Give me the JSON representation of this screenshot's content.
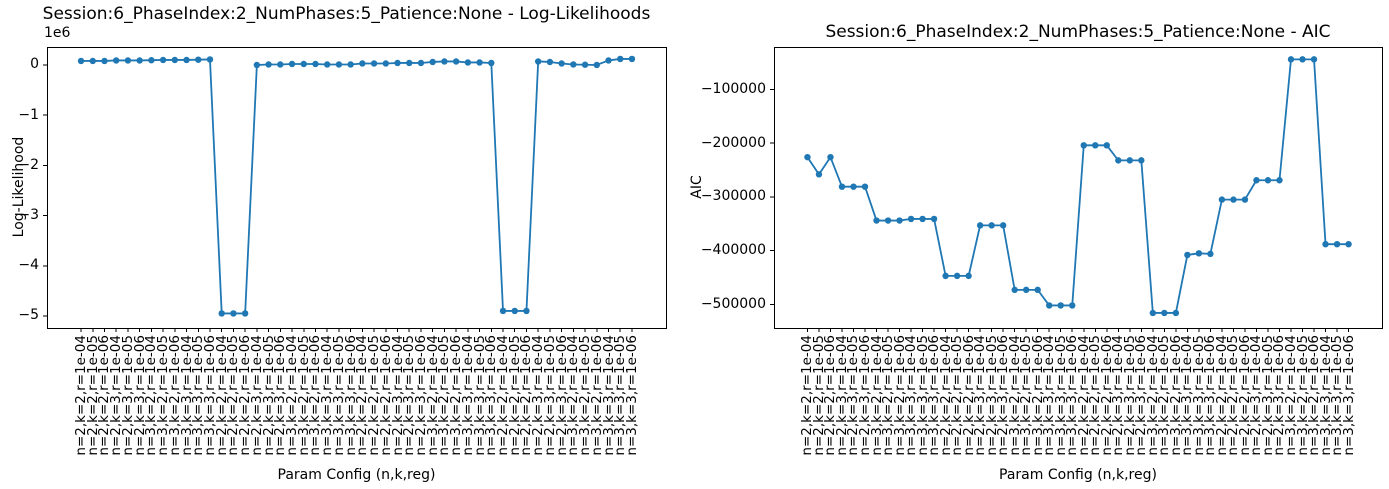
{
  "figure_title": "Session 6 Phase 2 model comparison figure",
  "accent_color": "#1f77b4",
  "chart_data": [
    {
      "type": "line",
      "title": "Session:6_PhaseIndex:2_NumPhases:5_Patience:None - Log-Likelihoods",
      "xlabel": "Param Config (n,k,reg)",
      "ylabel": "Log-Likelihood",
      "offset_text": "1e6",
      "series_color": "#1f77b4",
      "marker": "o",
      "grid": false,
      "legend": null,
      "ylim": [
        -5240000,
        358000
      ],
      "yticks": [
        {
          "value": 0,
          "label": "0"
        },
        {
          "value": -1000000,
          "label": "−1"
        },
        {
          "value": -2000000,
          "label": "−2"
        },
        {
          "value": -3000000,
          "label": "−3"
        },
        {
          "value": -4000000,
          "label": "−4"
        },
        {
          "value": -5000000,
          "label": "−5"
        }
      ],
      "x_labels": [
        "n=2,k=2,r=1e-04",
        "n=2,k=2,r=1e-05",
        "n=2,k=2,r=1e-06",
        "n=2,k=3,r=1e-04",
        "n=2,k=3,r=1e-05",
        "n=2,k=3,r=1e-06",
        "n=3,k=2,r=1e-04",
        "n=3,k=2,r=1e-05",
        "n=3,k=2,r=1e-06",
        "n=3,k=3,r=1e-04",
        "n=3,k=3,r=1e-05",
        "n=3,k=3,r=1e-06",
        "n=2,k=2,r=1e-04",
        "n=2,k=2,r=1e-05",
        "n=2,k=2,r=1e-06",
        "n=2,k=3,r=1e-04",
        "n=2,k=3,r=1e-05",
        "n=2,k=3,r=1e-06",
        "n=3,k=2,r=1e-04",
        "n=3,k=2,r=1e-05",
        "n=3,k=2,r=1e-06",
        "n=3,k=3,r=1e-04",
        "n=3,k=3,r=1e-05",
        "n=3,k=3,r=1e-06",
        "n=2,k=2,r=1e-04",
        "n=2,k=2,r=1e-05",
        "n=2,k=2,r=1e-06",
        "n=2,k=3,r=1e-04",
        "n=2,k=3,r=1e-05",
        "n=2,k=3,r=1e-06",
        "n=3,k=2,r=1e-04",
        "n=3,k=2,r=1e-05",
        "n=3,k=2,r=1e-06",
        "n=3,k=3,r=1e-04",
        "n=3,k=3,r=1e-05",
        "n=3,k=3,r=1e-06",
        "n=2,k=2,r=1e-04",
        "n=2,k=2,r=1e-05",
        "n=2,k=2,r=1e-06",
        "n=2,k=3,r=1e-04",
        "n=2,k=3,r=1e-05",
        "n=2,k=3,r=1e-06",
        "n=3,k=2,r=1e-04",
        "n=3,k=2,r=1e-05",
        "n=3,k=2,r=1e-06",
        "n=3,k=3,r=1e-04",
        "n=3,k=3,r=1e-05",
        "n=3,k=3,r=1e-06"
      ],
      "values": [
        80000,
        80000,
        80000,
        90000,
        90000,
        90000,
        95000,
        100000,
        100000,
        100000,
        105000,
        110000,
        -4950000,
        -4950000,
        -4950000,
        0,
        10000,
        10000,
        20000,
        20000,
        20000,
        10000,
        10000,
        10000,
        30000,
        30000,
        30000,
        40000,
        40000,
        40000,
        60000,
        70000,
        70000,
        50000,
        50000,
        40000,
        -4900000,
        -4900000,
        -4900000,
        70000,
        60000,
        30000,
        10000,
        5000,
        0,
        90000,
        120000,
        120000
      ]
    },
    {
      "type": "line",
      "title": "Session:6_PhaseIndex:2_NumPhases:5_Patience:None - AIC",
      "xlabel": "Param Config (n,k,reg)",
      "ylabel": "AIC",
      "offset_text": null,
      "series_color": "#1f77b4",
      "marker": "o",
      "grid": false,
      "legend": null,
      "ylim": [
        -544000,
        -21000
      ],
      "yticks": [
        {
          "value": -100000,
          "label": "−100000"
        },
        {
          "value": -200000,
          "label": "−200000"
        },
        {
          "value": -300000,
          "label": "−300000"
        },
        {
          "value": -400000,
          "label": "−400000"
        },
        {
          "value": -500000,
          "label": "−500000"
        }
      ],
      "x_labels": [
        "n=2,k=2,r=1e-04",
        "n=2,k=2,r=1e-05",
        "n=2,k=2,r=1e-06",
        "n=2,k=3,r=1e-04",
        "n=2,k=3,r=1e-05",
        "n=2,k=3,r=1e-06",
        "n=3,k=2,r=1e-04",
        "n=3,k=2,r=1e-05",
        "n=3,k=2,r=1e-06",
        "n=3,k=3,r=1e-04",
        "n=3,k=3,r=1e-05",
        "n=3,k=3,r=1e-06",
        "n=2,k=2,r=1e-04",
        "n=2,k=2,r=1e-05",
        "n=2,k=2,r=1e-06",
        "n=2,k=3,r=1e-04",
        "n=2,k=3,r=1e-05",
        "n=2,k=3,r=1e-06",
        "n=3,k=2,r=1e-04",
        "n=3,k=2,r=1e-05",
        "n=3,k=2,r=1e-06",
        "n=3,k=3,r=1e-04",
        "n=3,k=3,r=1e-05",
        "n=3,k=3,r=1e-06",
        "n=2,k=2,r=1e-04",
        "n=2,k=2,r=1e-05",
        "n=2,k=2,r=1e-06",
        "n=2,k=3,r=1e-04",
        "n=2,k=3,r=1e-05",
        "n=2,k=3,r=1e-06",
        "n=3,k=2,r=1e-04",
        "n=3,k=2,r=1e-05",
        "n=3,k=2,r=1e-06",
        "n=3,k=3,r=1e-04",
        "n=3,k=3,r=1e-05",
        "n=3,k=3,r=1e-06",
        "n=2,k=2,r=1e-04",
        "n=2,k=2,r=1e-05",
        "n=2,k=2,r=1e-06",
        "n=2,k=3,r=1e-04",
        "n=2,k=3,r=1e-05",
        "n=2,k=3,r=1e-06",
        "n=3,k=2,r=1e-04",
        "n=3,k=2,r=1e-05",
        "n=3,k=2,r=1e-06",
        "n=3,k=3,r=1e-04",
        "n=3,k=3,r=1e-05",
        "n=3,k=3,r=1e-06"
      ],
      "values": [
        -226000,
        -258000,
        -226000,
        -281000,
        -281000,
        -281000,
        -344000,
        -344000,
        -344000,
        -341000,
        -341000,
        -341000,
        -447000,
        -447000,
        -447000,
        -353000,
        -353000,
        -353000,
        -473000,
        -473000,
        -473000,
        -502000,
        -502000,
        -502000,
        -204000,
        -204000,
        -204000,
        -232000,
        -232000,
        -232000,
        -516000,
        -516000,
        -516000,
        -408000,
        -405000,
        -406000,
        -305000,
        -305000,
        -305000,
        -269000,
        -269000,
        -269000,
        -44000,
        -44000,
        -44000,
        -388000,
        -388000,
        -388000
      ]
    }
  ]
}
